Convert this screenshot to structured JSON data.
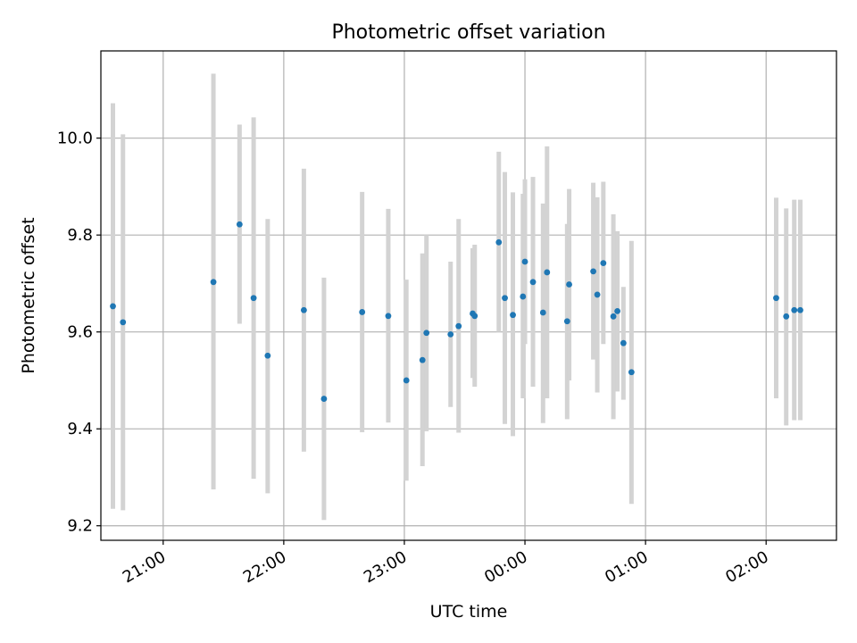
{
  "chart_data": {
    "type": "scatter",
    "title": "Photometric offset variation",
    "xlabel": "UTC time",
    "ylabel": "Photometric offset",
    "x_axis": {
      "kind": "time",
      "range": [
        "20:29",
        "02:35"
      ],
      "ticks": [
        {
          "time": "21:00",
          "label": "21:00"
        },
        {
          "time": "22:00",
          "label": "22:00"
        },
        {
          "time": "23:00",
          "label": "23:00"
        },
        {
          "time": "00:00",
          "label": "00:00"
        },
        {
          "time": "01:00",
          "label": "01:00"
        },
        {
          "time": "02:00",
          "label": "02:00"
        }
      ],
      "tick_label_rotation": 30
    },
    "y_axis": {
      "range": [
        9.17,
        10.18
      ],
      "ticks": [
        {
          "value": 9.2,
          "label": "9.2"
        },
        {
          "value": 9.4,
          "label": "9.4"
        },
        {
          "value": 9.6,
          "label": "9.6"
        },
        {
          "value": 9.8,
          "label": "9.8"
        },
        {
          "value": 10.0,
          "label": "10.0"
        }
      ]
    },
    "grid": true,
    "marker_color": "#1f77b4",
    "errorbar_color": "#d3d3d3",
    "points": [
      {
        "time": "20:35",
        "y": 9.653,
        "lo": 9.235,
        "hi": 10.072
      },
      {
        "time": "20:40",
        "y": 9.62,
        "lo": 9.232,
        "hi": 10.008
      },
      {
        "time": "21:25",
        "y": 9.703,
        "lo": 9.275,
        "hi": 10.133
      },
      {
        "time": "21:38",
        "y": 9.822,
        "lo": 9.617,
        "hi": 10.028
      },
      {
        "time": "21:45",
        "y": 9.67,
        "lo": 9.297,
        "hi": 10.043
      },
      {
        "time": "21:52",
        "y": 9.551,
        "lo": 9.267,
        "hi": 9.833
      },
      {
        "time": "22:10",
        "y": 9.645,
        "lo": 9.353,
        "hi": 9.937
      },
      {
        "time": "22:20",
        "y": 9.462,
        "lo": 9.212,
        "hi": 9.712
      },
      {
        "time": "22:39",
        "y": 9.641,
        "lo": 9.393,
        "hi": 9.889
      },
      {
        "time": "22:52",
        "y": 9.633,
        "lo": 9.413,
        "hi": 9.854
      },
      {
        "time": "23:01",
        "y": 9.5,
        "lo": 9.293,
        "hi": 9.708
      },
      {
        "time": "23:09",
        "y": 9.542,
        "lo": 9.323,
        "hi": 9.762
      },
      {
        "time": "23:11",
        "y": 9.598,
        "lo": 9.395,
        "hi": 9.8
      },
      {
        "time": "23:23",
        "y": 9.595,
        "lo": 9.445,
        "hi": 9.745
      },
      {
        "time": "23:27",
        "y": 9.612,
        "lo": 9.392,
        "hi": 9.833
      },
      {
        "time": "23:34",
        "y": 9.638,
        "lo": 9.505,
        "hi": 9.773
      },
      {
        "time": "23:35",
        "y": 9.633,
        "lo": 9.487,
        "hi": 9.78
      },
      {
        "time": "23:47",
        "y": 9.785,
        "lo": 9.6,
        "hi": 9.972
      },
      {
        "time": "23:50",
        "y": 9.67,
        "lo": 9.41,
        "hi": 9.93
      },
      {
        "time": "23:54",
        "y": 9.635,
        "lo": 9.385,
        "hi": 9.888
      },
      {
        "time": "23:59",
        "y": 9.673,
        "lo": 9.463,
        "hi": 9.885
      },
      {
        "time": "00:00",
        "y": 9.745,
        "lo": 9.575,
        "hi": 9.915
      },
      {
        "time": "00:04",
        "y": 9.703,
        "lo": 9.487,
        "hi": 9.92
      },
      {
        "time": "00:09",
        "y": 9.64,
        "lo": 9.412,
        "hi": 9.865
      },
      {
        "time": "00:11",
        "y": 9.723,
        "lo": 9.463,
        "hi": 9.983
      },
      {
        "time": "00:21",
        "y": 9.622,
        "lo": 9.42,
        "hi": 9.823
      },
      {
        "time": "00:22",
        "y": 9.698,
        "lo": 9.5,
        "hi": 9.895
      },
      {
        "time": "00:34",
        "y": 9.725,
        "lo": 9.543,
        "hi": 9.908
      },
      {
        "time": "00:36",
        "y": 9.677,
        "lo": 9.475,
        "hi": 9.878
      },
      {
        "time": "00:39",
        "y": 9.742,
        "lo": 9.575,
        "hi": 9.91
      },
      {
        "time": "00:44",
        "y": 9.632,
        "lo": 9.42,
        "hi": 9.843
      },
      {
        "time": "00:46",
        "y": 9.643,
        "lo": 9.477,
        "hi": 9.808
      },
      {
        "time": "00:49",
        "y": 9.577,
        "lo": 9.46,
        "hi": 9.693
      },
      {
        "time": "00:53",
        "y": 9.517,
        "lo": 9.245,
        "hi": 9.788
      },
      {
        "time": "02:05",
        "y": 9.67,
        "lo": 9.463,
        "hi": 9.877
      },
      {
        "time": "02:10",
        "y": 9.632,
        "lo": 9.407,
        "hi": 9.855
      },
      {
        "time": "02:14",
        "y": 9.645,
        "lo": 9.418,
        "hi": 9.873
      },
      {
        "time": "02:17",
        "y": 9.645,
        "lo": 9.418,
        "hi": 9.873
      }
    ]
  }
}
